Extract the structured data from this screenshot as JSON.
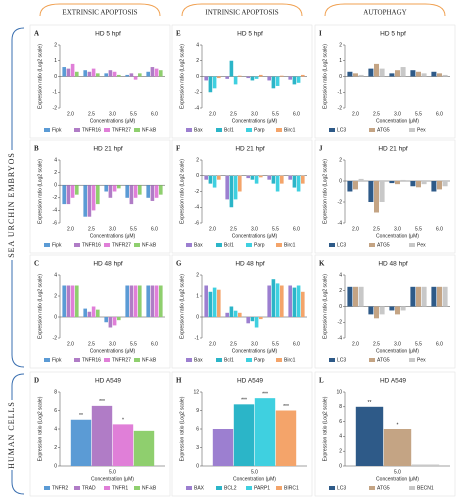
{
  "columns": [
    "EXTRINSIC APOPTOSIS",
    "INTRINSIC APOPTOSIS",
    "AUTOPHAGY"
  ],
  "row_groups": [
    "SEA URCHIN EMBRYOS",
    "HUMAN CELLS"
  ],
  "chart_data": [
    {
      "type": "bar",
      "letter": "A",
      "title": "HD 5 hpf",
      "y_label": "Expression ratio (Log2 scale)",
      "x_label": "Concentrations (μM)",
      "categories": [
        "2.0",
        "2.5",
        "3.0",
        "5.5",
        "6.0"
      ],
      "ylim": [
        -2,
        2
      ],
      "yticks": [
        -2,
        -1,
        0,
        1,
        2
      ],
      "series": [
        {
          "name": "Fipk",
          "color": "#5b9bd5",
          "values": [
            0.6,
            0.4,
            0.2,
            0.1,
            0.3
          ]
        },
        {
          "name": "TNFR16",
          "color": "#b07cc6",
          "values": [
            0.5,
            0.3,
            0.4,
            0.2,
            0.6
          ]
        },
        {
          "name": "TNFR27",
          "color": "#e07fd8",
          "values": [
            0.8,
            0.5,
            0.3,
            -0.2,
            0.5
          ]
        },
        {
          "name": "NF-kB",
          "color": "#8fcf6e",
          "values": [
            0.3,
            0.2,
            0.1,
            0.2,
            0.4
          ]
        }
      ]
    },
    {
      "type": "bar",
      "letter": "E",
      "title": "HD 5 hpf",
      "y_label": "Expression ratio (Log2 scale)",
      "x_label": "Concentrations (μM)",
      "categories": [
        "2.0",
        "2.5",
        "3.0",
        "5.5",
        "6.0"
      ],
      "ylim": [
        -4,
        4
      ],
      "yticks": [
        -4,
        -2,
        0,
        2,
        4
      ],
      "series": [
        {
          "name": "Bax",
          "color": "#9c7fd0",
          "values": [
            -0.5,
            -0.3,
            -0.2,
            -0.5,
            -0.4
          ]
        },
        {
          "name": "Bcl1",
          "color": "#2bb5c8",
          "values": [
            -2,
            2,
            -0.5,
            -1.5,
            -1
          ]
        },
        {
          "name": "Parp",
          "color": "#3fd0e0",
          "values": [
            -1.5,
            -1,
            -0.3,
            -1.2,
            -0.8
          ]
        },
        {
          "name": "Birc1",
          "color": "#f4a46a",
          "values": [
            -0.2,
            0.1,
            0.2,
            0.1,
            0.2
          ]
        }
      ]
    },
    {
      "type": "bar",
      "letter": "I",
      "title": "HD 5 hpf",
      "y_label": "Expression ratio (Log2 scale)",
      "x_label": "Concentration (μM)",
      "categories": [
        "2.0",
        "2.5",
        "3.0",
        "5.5",
        "6.0"
      ],
      "ylim": [
        -2,
        2
      ],
      "yticks": [
        -2,
        -1,
        0,
        1,
        2
      ],
      "series": [
        {
          "name": "LC3",
          "color": "#2e5a88",
          "values": [
            0.3,
            0.5,
            0.2,
            0.4,
            0.3
          ]
        },
        {
          "name": "ATG5",
          "color": "#c4a484",
          "values": [
            0.2,
            0.8,
            0.4,
            0.3,
            0.2
          ]
        },
        {
          "name": "Pex",
          "color": "#c8c8c8",
          "values": [
            0.1,
            0.5,
            0.6,
            0.2,
            0.1
          ]
        }
      ]
    },
    {
      "type": "bar",
      "letter": "B",
      "title": "HD 21 hpf",
      "y_label": "Expression ratio (Log2 scale)",
      "x_label": "Concentrations (μM)",
      "categories": [
        "2.0",
        "2.5",
        "3.0",
        "5.5",
        "6.0"
      ],
      "ylim": [
        -6,
        4
      ],
      "yticks": [
        -6,
        -4,
        -2,
        0,
        2,
        4
      ],
      "series": [
        {
          "name": "Fipk",
          "color": "#5b9bd5",
          "values": [
            -3,
            -5,
            -1,
            -2,
            -2
          ]
        },
        {
          "name": "TNFR16",
          "color": "#b07cc6",
          "values": [
            -3,
            -5,
            -2,
            -3,
            -2.5
          ]
        },
        {
          "name": "TNFR27",
          "color": "#e07fd8",
          "values": [
            -2,
            -4,
            -1,
            -2,
            -2
          ]
        },
        {
          "name": "NF-kB",
          "color": "#8fcf6e",
          "values": [
            -1.5,
            -3,
            -0.5,
            -1.5,
            -1.5
          ]
        }
      ]
    },
    {
      "type": "bar",
      "letter": "F",
      "title": "HD 21 hpf",
      "y_label": "Expression ratio (Log2 scale)",
      "x_label": "Concentrations (μM)",
      "categories": [
        "2.0",
        "2.5",
        "3.0",
        "5.5",
        "6.0"
      ],
      "ylim": [
        -6,
        2
      ],
      "yticks": [
        -6,
        -4,
        -2,
        0,
        2
      ],
      "series": [
        {
          "name": "Bax",
          "color": "#9c7fd0",
          "values": [
            -0.5,
            -3,
            -0.3,
            -0.5,
            -0.5
          ]
        },
        {
          "name": "Bcl1",
          "color": "#2bb5c8",
          "values": [
            -1,
            -4,
            -0.5,
            -1,
            -1.5
          ]
        },
        {
          "name": "Parp",
          "color": "#3fd0e0",
          "values": [
            -1.5,
            -3,
            -1,
            -2,
            -2
          ]
        },
        {
          "name": "Birc1",
          "color": "#f4a46a",
          "values": [
            -0.5,
            -2,
            -0.2,
            -1,
            -1
          ]
        }
      ]
    },
    {
      "type": "bar",
      "letter": "J",
      "title": "HD 21 hpf",
      "y_label": "Expression ratio (Log2 scale)",
      "x_label": "Concentration (μM)",
      "categories": [
        "2.0",
        "2.5",
        "3.0",
        "5.5",
        "6.0"
      ],
      "ylim": [
        -4,
        2
      ],
      "yticks": [
        -4,
        -2,
        0,
        2
      ],
      "series": [
        {
          "name": "LC3",
          "color": "#2e5a88",
          "values": [
            -1,
            -2,
            -0.2,
            -0.5,
            -1
          ]
        },
        {
          "name": "ATG5",
          "color": "#c4a484",
          "values": [
            -0.8,
            -3,
            -0.3,
            -0.6,
            -0.8
          ]
        },
        {
          "name": "Pex",
          "color": "#c8c8c8",
          "values": [
            0.2,
            -2,
            0.1,
            -0.3,
            -0.5
          ]
        }
      ]
    },
    {
      "type": "bar",
      "letter": "C",
      "title": "HD 48 hpf",
      "y_label": "Expression ratio (Log2 scale)",
      "x_label": "Concentrations (μM)",
      "categories": [
        "2.0",
        "2.5",
        "3.0",
        "5.5",
        "6.0"
      ],
      "ylim": [
        -2,
        4
      ],
      "yticks": [
        -2,
        0,
        2,
        4
      ],
      "series": [
        {
          "name": "Fipk",
          "color": "#5b9bd5",
          "values": [
            3,
            0.8,
            -0.5,
            3,
            3
          ]
        },
        {
          "name": "TNFR16",
          "color": "#b07cc6",
          "values": [
            3,
            0.5,
            -1,
            3,
            3
          ]
        },
        {
          "name": "TNFR27",
          "color": "#e07fd8",
          "values": [
            3,
            1,
            -0.8,
            3,
            3
          ]
        },
        {
          "name": "NF-kB",
          "color": "#8fcf6e",
          "values": [
            3,
            0.7,
            -0.3,
            3,
            3
          ]
        }
      ]
    },
    {
      "type": "bar",
      "letter": "G",
      "title": "HD 48 hpf",
      "y_label": "Expression ratio (Log2 scale)",
      "x_label": "Concentrations (μM)",
      "categories": [
        "2.0",
        "2.5",
        "3.0",
        "5.5",
        "6.0"
      ],
      "ylim": [
        -1,
        2
      ],
      "yticks": [
        -1,
        0,
        1,
        2
      ],
      "series": [
        {
          "name": "Bax",
          "color": "#9c7fd0",
          "values": [
            1.5,
            0.2,
            -0.3,
            1.5,
            1.5
          ]
        },
        {
          "name": "Bcl1",
          "color": "#2bb5c8",
          "values": [
            1.2,
            0.5,
            -0.2,
            1.8,
            1.4
          ]
        },
        {
          "name": "Parp",
          "color": "#3fd0e0",
          "values": [
            1.4,
            0.3,
            -0.5,
            1.6,
            1.5
          ]
        },
        {
          "name": "Birc1",
          "color": "#f4a46a",
          "values": [
            1.3,
            0.2,
            -0.1,
            1.5,
            1.2
          ]
        }
      ]
    },
    {
      "type": "bar",
      "letter": "K",
      "title": "HD 48 hpf",
      "y_label": "Expression ratio (Log2 scale)",
      "x_label": "Concentration (μM)",
      "categories": [
        "2.0",
        "2.5",
        "3.0",
        "5.5",
        "6.0"
      ],
      "ylim": [
        -4,
        4
      ],
      "yticks": [
        -4,
        -2,
        0,
        2,
        4
      ],
      "series": [
        {
          "name": "LC3",
          "color": "#2e5a88",
          "values": [
            2.5,
            -1,
            -0.5,
            2.5,
            2.5
          ]
        },
        {
          "name": "ATG5",
          "color": "#c4a484",
          "values": [
            2.5,
            -1.5,
            -1,
            2.5,
            2.5
          ]
        },
        {
          "name": "Pex",
          "color": "#c8c8c8",
          "values": [
            2.5,
            -1,
            -0.5,
            2.5,
            2.5
          ]
        }
      ]
    },
    {
      "type": "bar",
      "letter": "D",
      "title": "HD A549",
      "y_label": "Expression ratio (Log2 scale)",
      "x_label": "Concentration (μM)",
      "categories": [
        "5.0"
      ],
      "ylim": [
        0,
        8
      ],
      "yticks": [
        0,
        2,
        4,
        6,
        8
      ],
      "series": [
        {
          "name": "TNFR2",
          "color": "#5b9bd5",
          "values": [
            5
          ],
          "stars": "**"
        },
        {
          "name": "TRAD",
          "color": "#b07cc6",
          "values": [
            6.5
          ],
          "stars": "***"
        },
        {
          "name": "TNFR1",
          "color": "#e07fd8",
          "values": [
            4.5
          ],
          "stars": "*"
        },
        {
          "name": "NF-kB",
          "color": "#8fcf6e",
          "values": [
            3.8
          ]
        }
      ]
    },
    {
      "type": "bar",
      "letter": "H",
      "title": "HD A549",
      "y_label": "Expression ratio (Log2 scale)",
      "x_label": "Concentration (μM)",
      "categories": [
        "5.0"
      ],
      "ylim": [
        0,
        12
      ],
      "yticks": [
        0,
        3,
        6,
        9,
        12
      ],
      "series": [
        {
          "name": "BAX",
          "color": "#9c7fd0",
          "values": [
            6
          ]
        },
        {
          "name": "BCL2",
          "color": "#2bb5c8",
          "values": [
            10
          ],
          "stars": "***"
        },
        {
          "name": "PARP1",
          "color": "#3fd0e0",
          "values": [
            11
          ],
          "stars": "***"
        },
        {
          "name": "BIRC1",
          "color": "#f4a46a",
          "values": [
            9
          ],
          "stars": "***"
        }
      ]
    },
    {
      "type": "bar",
      "letter": "L",
      "title": "HD A549",
      "y_label": "Expression ratio (Log2 scale)",
      "x_label": "Concentration (μM)",
      "categories": [
        "5.0"
      ],
      "ylim": [
        0,
        10
      ],
      "yticks": [
        0,
        2,
        4,
        6,
        8,
        10
      ],
      "series": [
        {
          "name": "LC3",
          "color": "#2e5a88",
          "values": [
            8
          ],
          "stars": "**"
        },
        {
          "name": "ATG5",
          "color": "#c4a484",
          "values": [
            5
          ],
          "stars": "*"
        },
        {
          "name": "BECN1",
          "color": "#c8c8c8",
          "values": [
            0.2
          ]
        }
      ]
    }
  ]
}
